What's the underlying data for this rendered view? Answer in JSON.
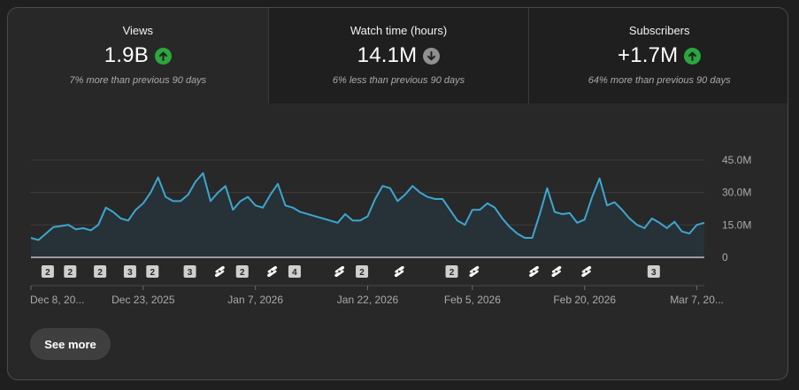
{
  "metrics": [
    {
      "label": "Views",
      "value": "1.9B",
      "trend": "up",
      "comparison": "7% more than previous 90 days"
    },
    {
      "label": "Watch time (hours)",
      "value": "14.1M",
      "trend": "down",
      "comparison": "6% less than previous 90 days"
    },
    {
      "label": "Subscribers",
      "value": "+1.7M",
      "trend": "up",
      "comparison": "64% more than previous 90 days"
    }
  ],
  "colors": {
    "up": "#2ba640",
    "down": "#909090",
    "line": "#3ea6cf",
    "fill": "#263238"
  },
  "chart_data": {
    "type": "area",
    "title": "Views",
    "ylim": [
      0,
      45
    ],
    "yticks": [
      {
        "v": 0,
        "label": "0"
      },
      {
        "v": 15,
        "label": "15.0M"
      },
      {
        "v": 30,
        "label": "30.0M"
      },
      {
        "v": 45,
        "label": "45.0M"
      }
    ],
    "y_unit": "M",
    "xticks": [
      {
        "i": 0,
        "label": "Dec 8, 20..."
      },
      {
        "i": 15,
        "label": "Dec 23, 2025"
      },
      {
        "i": 30,
        "label": "Jan 7, 2026"
      },
      {
        "i": 45,
        "label": "Jan 22, 2026"
      },
      {
        "i": 59,
        "label": "Feb 5, 2026"
      },
      {
        "i": 74,
        "label": "Feb 20, 2026"
      },
      {
        "i": 89,
        "label": "Mar 7, 20..."
      }
    ],
    "values": [
      9.0,
      8.0,
      11.0,
      14.0,
      14.5,
      15.0,
      13.0,
      13.5,
      12.5,
      15.0,
      23.0,
      21.0,
      18.0,
      17.0,
      22.0,
      25.0,
      30.0,
      37.0,
      28.0,
      26.0,
      26.0,
      29.0,
      35.0,
      39.0,
      26.0,
      30.0,
      33.0,
      22.0,
      26.0,
      28.0,
      24.0,
      23.0,
      29.0,
      34.0,
      24.0,
      23.0,
      21.0,
      20.0,
      19.0,
      18.0,
      17.0,
      16.0,
      20.0,
      17.0,
      17.0,
      19.0,
      27.0,
      33.0,
      32.0,
      26.0,
      29.0,
      33.0,
      30.0,
      28.0,
      27.0,
      27.0,
      22.0,
      17.0,
      15.0,
      22.0,
      22.0,
      25.0,
      23.0,
      18.0,
      14.0,
      11.0,
      9.0,
      9.0,
      20.0,
      32.0,
      21.0,
      20.0,
      20.5,
      16.0,
      17.5,
      28.0,
      36.5,
      24.0,
      25.5,
      22.0,
      18.0,
      15.0,
      13.5,
      18.0,
      16.0,
      13.5,
      16.5,
      12.0,
      11.0,
      15.0,
      16.0
    ],
    "markers": [
      {
        "i": 2,
        "label": "2"
      },
      {
        "i": 5,
        "label": "2"
      },
      {
        "i": 9,
        "label": "2"
      },
      {
        "i": 13,
        "label": "3"
      },
      {
        "i": 16,
        "label": "2"
      },
      {
        "i": 21,
        "label": "3"
      },
      {
        "i": 25,
        "label": "shorts"
      },
      {
        "i": 28,
        "label": "2"
      },
      {
        "i": 32,
        "label": "shorts"
      },
      {
        "i": 35,
        "label": "4"
      },
      {
        "i": 41,
        "label": "shorts"
      },
      {
        "i": 44,
        "label": "2"
      },
      {
        "i": 49,
        "label": "shorts"
      },
      {
        "i": 56,
        "label": "2"
      },
      {
        "i": 59,
        "label": "shorts"
      },
      {
        "i": 67,
        "label": "shorts"
      },
      {
        "i": 70,
        "label": "shorts"
      },
      {
        "i": 74,
        "label": "shorts"
      },
      {
        "i": 83,
        "label": "3"
      }
    ]
  },
  "see_more_label": "See more"
}
